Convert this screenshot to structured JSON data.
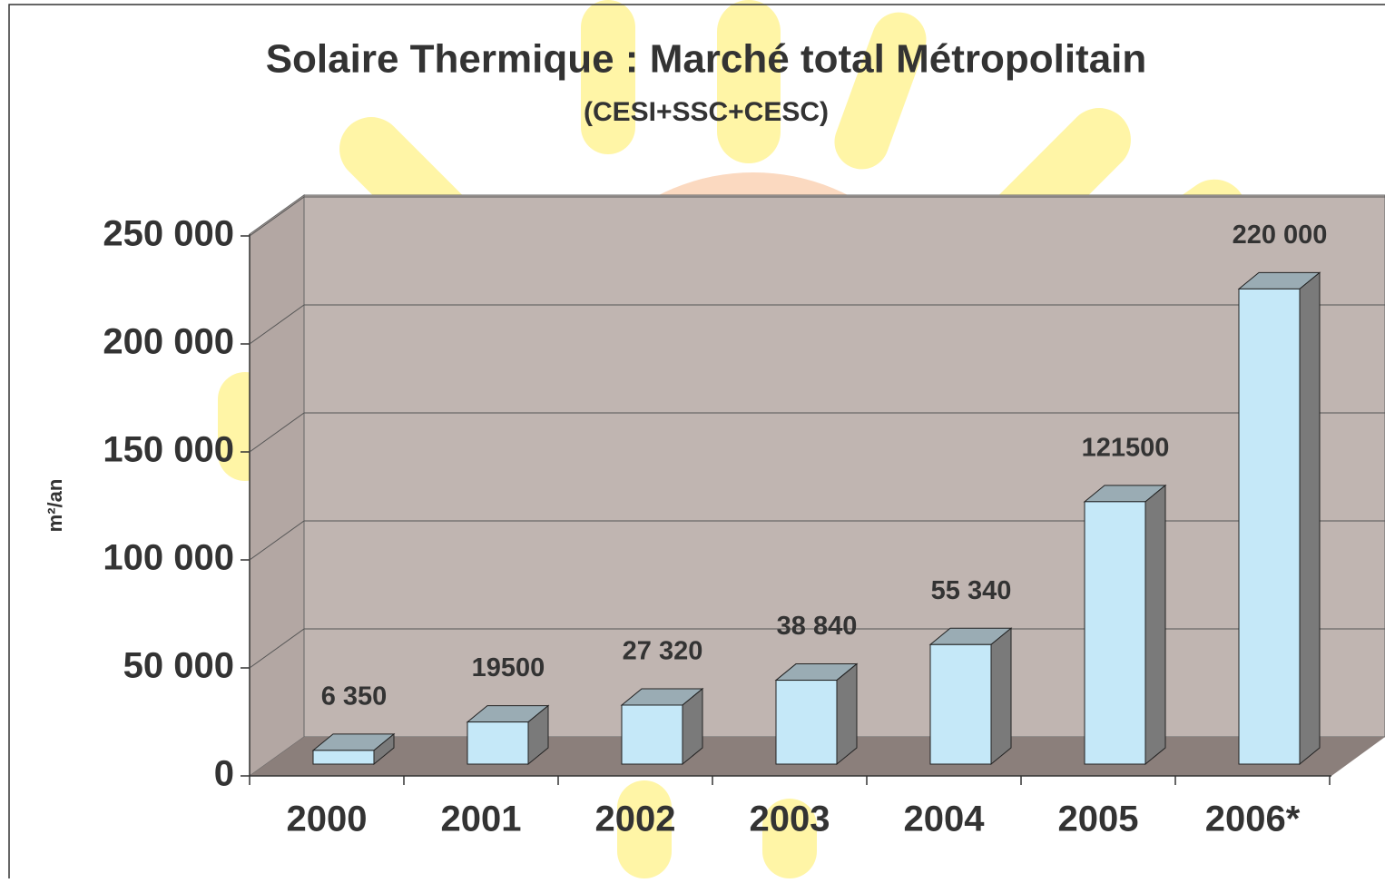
{
  "chart_data": {
    "type": "bar3d",
    "title": "Solaire Thermique : Marché total Métropolitain",
    "subtitle": "(CESI+SSC+CESC)",
    "y_label": "m²/an",
    "categories": [
      "2000",
      "2001",
      "2002",
      "2003",
      "2004",
      "2005",
      "2006*"
    ],
    "values": [
      6350,
      19500,
      27320,
      38840,
      55340,
      121500,
      220000
    ],
    "value_labels": [
      "6 350",
      "19500",
      "27 320",
      "38 840",
      "55 340",
      "121500",
      "220 000"
    ],
    "color": "#c5e8f8",
    "ylim": [
      0,
      250000
    ],
    "yticks": [
      0,
      {
        "value": 50000,
        "label": "50 000"
      },
      {
        "value": 100000,
        "label": "100 000"
      },
      {
        "value": 150000,
        "label": "150 000"
      },
      {
        "value": 200000,
        "label": "200 000"
      },
      {
        "value": 250000,
        "label": "250 000"
      }
    ],
    "grid": true
  }
}
